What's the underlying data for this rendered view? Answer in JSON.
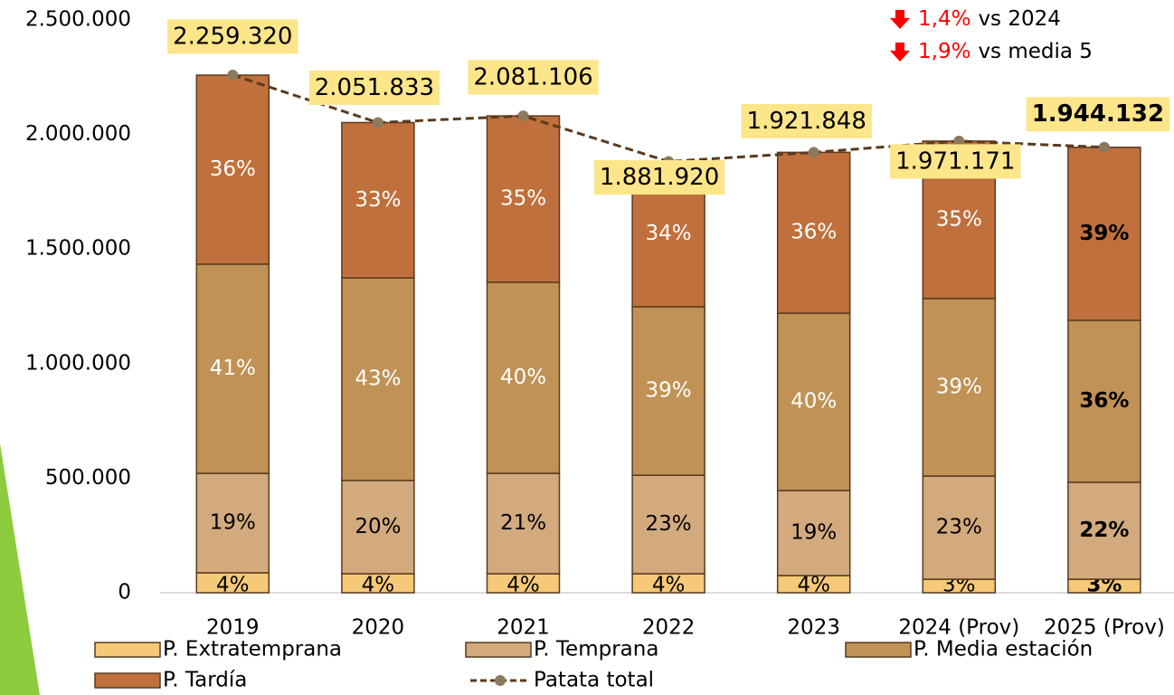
{
  "chart_data": {
    "type": "stacked_bar_line",
    "categories": [
      "2019",
      "2020",
      "2021",
      "2022",
      "2023",
      "2024 (Prov)",
      "2025 (Prov)"
    ],
    "ylim": [
      0,
      2500000
    ],
    "yticks": [
      0,
      {
        "value": 500000,
        "label": "500.000"
      },
      {
        "value": 1000000,
        "label": "1.000.000"
      },
      {
        "value": 1500000,
        "label": "1.500.000"
      },
      {
        "value": 2000000,
        "label": "2.000.000"
      },
      {
        "value": 2500000,
        "label": "2.500.000"
      }
    ],
    "series": [
      {
        "name": "P. Extratemprana",
        "color": "#f5c977",
        "label_color": "#000000",
        "values": [
          87000,
          83000,
          83000,
          83000,
          75000,
          59000,
          59000
        ],
        "share_labels": [
          "4%",
          "4%",
          "4%",
          "4%",
          "4%",
          "3%",
          "3%"
        ]
      },
      {
        "name": "P. Temprana",
        "color": "#d2aa7d",
        "label_color": "#000000",
        "values": [
          434000,
          407000,
          438000,
          430000,
          371000,
          450000,
          423000
        ],
        "share_labels": [
          "19%",
          "20%",
          "21%",
          "23%",
          "19%",
          "23%",
          "22%"
        ]
      },
      {
        "name": "P. Media estación",
        "color": "#c09255",
        "label_color": "#ffffff",
        "values": [
          913000,
          884000,
          834000,
          735000,
          774000,
          775000,
          707000
        ],
        "share_labels": [
          "41%",
          "43%",
          "40%",
          "39%",
          "40%",
          "39%",
          "36%"
        ]
      },
      {
        "name": "P. Tardía",
        "color": "#c0703c",
        "label_color": "#ffffff",
        "values": [
          825000,
          678000,
          726000,
          634000,
          702000,
          687000,
          755000
        ],
        "share_labels": [
          "36%",
          "33%",
          "35%",
          "34%",
          "36%",
          "35%",
          "39%"
        ]
      },
      {
        "name": "Patata total",
        "type": "line",
        "color": "#5a3a1e",
        "marker_color": "#8c7a5e",
        "values": [
          2259320,
          2051833,
          2081106,
          1881920,
          1921848,
          1971171,
          1944132
        ],
        "value_labels": [
          "2.259.320",
          "2.051.833",
          "2.081.106",
          "1.881.920",
          "1.921.848",
          "1.971.171",
          "1.944.132"
        ]
      }
    ],
    "highlight_category": "2025 (Prov)",
    "annotations": [
      {
        "change": "1,4%",
        "text": "vs 2024"
      },
      {
        "change": "1,9%",
        "text": "vs media 5"
      }
    ],
    "annotation_color": "#ff0000"
  }
}
